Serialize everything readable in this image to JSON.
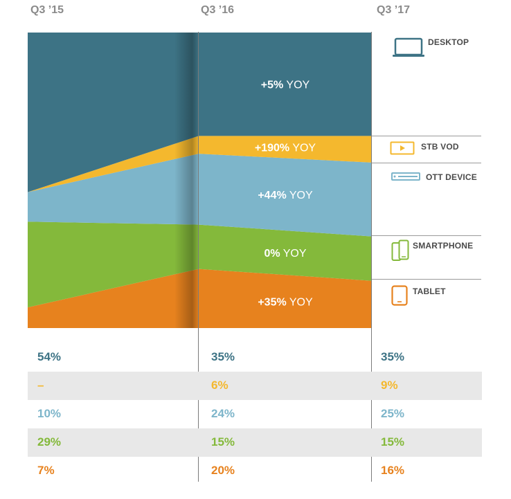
{
  "periods": [
    "Q3 ’15",
    "Q3 ’16",
    "Q3 ’17"
  ],
  "colors": {
    "desktop": "#3d7385",
    "stb_vod": "#f4b82e",
    "ott_device": "#7db5ca",
    "smartphone": "#84b93b",
    "tablet": "#e7821e"
  },
  "legend": [
    {
      "key": "desktop",
      "label": "DESKTOP",
      "icon": "laptop-icon"
    },
    {
      "key": "stb_vod",
      "label": "STB VOD",
      "icon": "set-top-box-icon"
    },
    {
      "key": "ott_device",
      "label": "OTT DEVICE",
      "icon": "ott-device-icon"
    },
    {
      "key": "smartphone",
      "label": "SMARTPHONE",
      "icon": "smartphone-icon"
    },
    {
      "key": "tablet",
      "label": "TABLET",
      "icon": "tablet-icon"
    }
  ],
  "chart_data": {
    "type": "area",
    "stacked": true,
    "percent": true,
    "x": [
      "Q3 ’15",
      "Q3 ’16",
      "Q3 ’17"
    ],
    "series": [
      {
        "key": "tablet",
        "name": "TABLET",
        "values": [
          7,
          20,
          16
        ],
        "yoy_value": "+35%",
        "yoy_unit": "YOY"
      },
      {
        "key": "smartphone",
        "name": "SMARTPHONE",
        "values": [
          29,
          15,
          15
        ],
        "yoy_value": "0%",
        "yoy_unit": "YOY"
      },
      {
        "key": "ott_device",
        "name": "OTT DEVICE",
        "values": [
          10,
          24,
          25
        ],
        "yoy_value": "+44%",
        "yoy_unit": "YOY"
      },
      {
        "key": "stb_vod",
        "name": "STB VOD",
        "values": [
          0,
          6,
          9
        ],
        "yoy_value": "+190%",
        "yoy_unit": "YOY"
      },
      {
        "key": "desktop",
        "name": "DESKTOP",
        "values": [
          54,
          35,
          35
        ],
        "yoy_value": "+5%",
        "yoy_unit": "YOY"
      }
    ]
  },
  "table": {
    "rows": [
      {
        "key": "desktop",
        "cells": [
          "54%",
          "35%",
          "35%"
        ]
      },
      {
        "key": "stb_vod",
        "cells": [
          "–",
          "6%",
          "9%"
        ]
      },
      {
        "key": "ott_device",
        "cells": [
          "10%",
          "24%",
          "25%"
        ]
      },
      {
        "key": "smartphone",
        "cells": [
          "29%",
          "15%",
          "15%"
        ]
      },
      {
        "key": "tablet",
        "cells": [
          "7%",
          "20%",
          "16%"
        ]
      }
    ]
  }
}
